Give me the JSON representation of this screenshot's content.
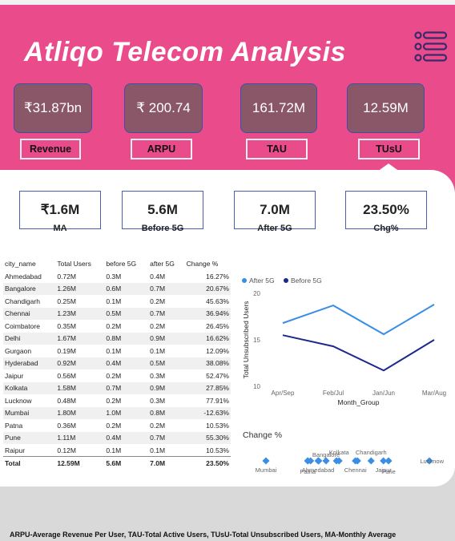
{
  "title": "Atliqo Telecom Analysis",
  "kpis": [
    {
      "value": "₹31.87bn",
      "label": "Revenue"
    },
    {
      "value": "₹ 200.74",
      "label": "ARPU"
    },
    {
      "value": "161.72M",
      "label": "TAU"
    },
    {
      "value": "12.59M",
      "label": "TUsU"
    }
  ],
  "metrics": [
    {
      "value": "₹1.6M",
      "label": "MA"
    },
    {
      "value": "5.6M",
      "label": "Before 5G"
    },
    {
      "value": "7.0M",
      "label": "After 5G"
    },
    {
      "value": "23.50%",
      "label": "Chg%"
    }
  ],
  "table": {
    "headers": [
      "city_name",
      "Total Users",
      "before 5G",
      "after 5G",
      "Change %"
    ],
    "rows": [
      [
        "Ahmedabad",
        "0.72M",
        "0.3M",
        "0.4M",
        "16.27%"
      ],
      [
        "Bangalore",
        "1.26M",
        "0.6M",
        "0.7M",
        "20.67%"
      ],
      [
        "Chandigarh",
        "0.25M",
        "0.1M",
        "0.2M",
        "45.63%"
      ],
      [
        "Chennai",
        "1.23M",
        "0.5M",
        "0.7M",
        "36.94%"
      ],
      [
        "Coimbatore",
        "0.35M",
        "0.2M",
        "0.2M",
        "26.45%"
      ],
      [
        "Delhi",
        "1.67M",
        "0.8M",
        "0.9M",
        "16.62%"
      ],
      [
        "Gurgaon",
        "0.19M",
        "0.1M",
        "0.1M",
        "12.09%"
      ],
      [
        "Hyderabad",
        "0.92M",
        "0.4M",
        "0.5M",
        "38.08%"
      ],
      [
        "Jaipur",
        "0.56M",
        "0.2M",
        "0.3M",
        "52.47%"
      ],
      [
        "Kolkata",
        "1.58M",
        "0.7M",
        "0.9M",
        "27.85%"
      ],
      [
        "Lucknow",
        "0.48M",
        "0.2M",
        "0.3M",
        "77.91%"
      ],
      [
        "Mumbai",
        "1.80M",
        "1.0M",
        "0.8M",
        "-12.63%"
      ],
      [
        "Patna",
        "0.36M",
        "0.2M",
        "0.2M",
        "10.53%"
      ],
      [
        "Pune",
        "1.11M",
        "0.4M",
        "0.7M",
        "55.30%"
      ],
      [
        "Raipur",
        "0.12M",
        "0.1M",
        "0.1M",
        "10.53%"
      ]
    ],
    "total": [
      "Total",
      "12.59M",
      "5.6M",
      "7.0M",
      "23.50%"
    ]
  },
  "chart_data": [
    {
      "type": "line",
      "categories": [
        "Apr/Sep",
        "Feb/Jul",
        "Jan/Jun",
        "Mar/Aug"
      ],
      "series": [
        {
          "name": "After 5G",
          "color": "#3a8ee6",
          "values": [
            16.8,
            18.7,
            15.6,
            18.8
          ]
        },
        {
          "name": "Before 5G",
          "color": "#1b2a8a",
          "values": [
            15.5,
            14.3,
            11.7,
            15.0
          ]
        }
      ],
      "xlabel": "Month_Group",
      "ylabel": "Total Unsubscribed Users",
      "yticks": [
        10,
        15,
        20
      ],
      "ylim": [
        10,
        20
      ],
      "legend": "top-left",
      "grid": false
    },
    {
      "type": "scatter",
      "title": "Change %",
      "color": "#3a8ee6",
      "points": [
        {
          "city": "Mumbai",
          "value": -12.63
        },
        {
          "city": "Patna",
          "value": 10.53
        },
        {
          "city": "Raipur",
          "value": 10.53
        },
        {
          "city": "Gurgaon",
          "value": 12.09
        },
        {
          "city": "Ahmedabad",
          "value": 16.27
        },
        {
          "city": "Delhi",
          "value": 16.62
        },
        {
          "city": "Bangalore",
          "value": 20.67
        },
        {
          "city": "Coimbatore",
          "value": 26.45
        },
        {
          "city": "Kolkata",
          "value": 27.85
        },
        {
          "city": "Chennai",
          "value": 36.94
        },
        {
          "city": "Hyderabad",
          "value": 38.08
        },
        {
          "city": "Chandigarh",
          "value": 45.63
        },
        {
          "city": "Jaipur",
          "value": 52.47
        },
        {
          "city": "Pune",
          "value": 55.3
        },
        {
          "city": "Lucknow",
          "value": 77.91
        }
      ],
      "labels": [
        {
          "text": "Mumbai",
          "city": "Mumbai",
          "pos": "below"
        },
        {
          "text": "Patna",
          "city": "Patna",
          "pos": "below2"
        },
        {
          "text": "Bangalore",
          "city": "Bangalore",
          "pos": "above"
        },
        {
          "text": "Ahmedabad",
          "city": "Ahmedabad",
          "pos": "below"
        },
        {
          "text": "Kolkata",
          "city": "Kolkata",
          "pos": "above2"
        },
        {
          "text": "Chennai",
          "city": "Chennai",
          "pos": "below"
        },
        {
          "text": "Chandigarh",
          "city": "Chandigarh",
          "pos": "above2"
        },
        {
          "text": "Jaipur",
          "city": "Jaipur",
          "pos": "below"
        },
        {
          "text": "Pune",
          "city": "Pune",
          "pos": "below2"
        },
        {
          "text": "Lucknow",
          "city": "Lucknow",
          "pos": "right"
        }
      ]
    }
  ],
  "footer": "ARPU-Average Revenue Per User, TAU-Total Active Users, TUsU-Total Unsubscribed Users, MA-Monthly Average"
}
